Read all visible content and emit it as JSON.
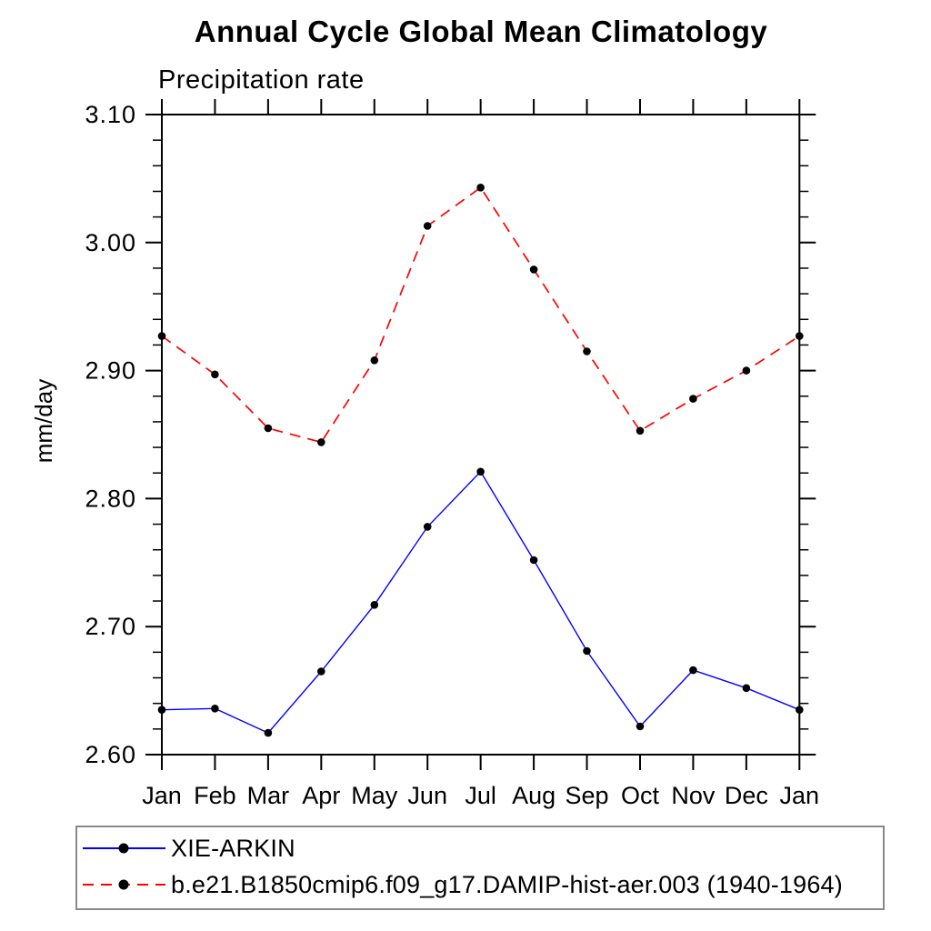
{
  "chart_data": {
    "type": "line",
    "title": "Annual Cycle Global Mean Climatology",
    "subtitle": "Precipitation rate",
    "ylabel": "mm/day",
    "xlabel": "",
    "categories": [
      "Jan",
      "Feb",
      "Mar",
      "Apr",
      "May",
      "Jun",
      "Jul",
      "Aug",
      "Sep",
      "Oct",
      "Nov",
      "Dec",
      "Jan"
    ],
    "ylim": [
      2.6,
      3.1
    ],
    "ytick_step": 0.1,
    "yminor_step": 0.02,
    "ytick_labels": [
      "2.60",
      "2.70",
      "2.80",
      "2.90",
      "3.00",
      "3.10"
    ],
    "grid": false,
    "legend_position": "bottom-left-boxed",
    "frame_color": "#000000",
    "series": [
      {
        "name": "XIE-ARKIN",
        "color": "#0000ff",
        "line_style": "solid",
        "dash": "none",
        "marker": "filled-circle",
        "marker_color": "#000000",
        "values": [
          2.635,
          2.636,
          2.617,
          2.665,
          2.717,
          2.778,
          2.821,
          2.752,
          2.681,
          2.622,
          2.666,
          2.652,
          2.635
        ]
      },
      {
        "name": "b.e21.B1850cmip6.f09_g17.DAMIP-hist-aer.003 (1940-1964)",
        "color": "#ff0000",
        "line_style": "dashed",
        "dash": "12 8",
        "marker": "filled-circle",
        "marker_color": "#000000",
        "values": [
          2.927,
          2.897,
          2.855,
          2.844,
          2.908,
          3.013,
          3.043,
          2.979,
          2.915,
          2.853,
          2.878,
          2.9,
          2.927
        ]
      }
    ]
  }
}
